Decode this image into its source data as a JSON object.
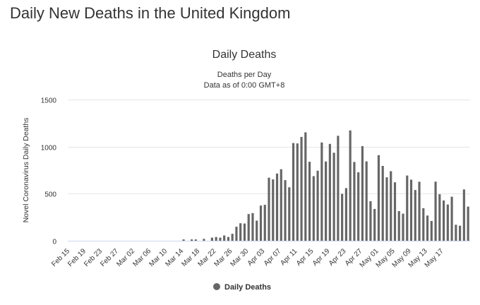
{
  "page": {
    "title": "Daily New Deaths in the United Kingdom"
  },
  "chart_data": {
    "type": "bar",
    "title": "Daily Deaths",
    "subtitle_line1": "Deaths per Day",
    "subtitle_line2": "Data as of 0:00 GMT+8",
    "ylabel": "Novel Coronavirus Daily Deaths",
    "xlabel": "",
    "ylim": [
      0,
      1500
    ],
    "yticks": [
      0,
      500,
      1000,
      1500
    ],
    "grid": true,
    "legend": "bottom-center",
    "series": [
      {
        "name": "Daily Deaths",
        "color": "#666666",
        "start_date": "2020-02-15",
        "values": [
          0,
          0,
          0,
          0,
          0,
          0,
          0,
          0,
          0,
          0,
          0,
          0,
          0,
          0,
          0,
          0,
          0,
          0,
          0,
          0,
          0,
          0,
          0,
          0,
          0,
          0,
          0,
          0,
          14,
          0,
          14,
          14,
          0,
          20,
          0,
          33,
          40,
          33,
          56,
          40,
          74,
          149,
          186,
          183,
          284,
          294,
          214,
          374,
          382,
          670,
          652,
          714,
          760,
          644,
          568,
          1038,
          1034,
          1103,
          1152,
          839,
          686,
          744,
          1044,
          842,
          1029,
          935,
          1115,
          498,
          559,
          1172,
          837,
          727,
          1005,
          843,
          420,
          338,
          909,
          795,
          674,
          739,
          621,
          315,
          288,
          693,
          649,
          539,
          627,
          346,
          268,
          210,
          628,
          494,
          428,
          385,
          468,
          170,
          160,
          545,
          363
        ]
      }
    ],
    "x_tick_labels": [
      "Feb 15",
      "Feb 19",
      "Feb 23",
      "Feb 27",
      "Mar 02",
      "Mar 06",
      "Mar 10",
      "Mar 14",
      "Mar 18",
      "Mar 22",
      "Mar 26",
      "Mar 30",
      "Apr 03",
      "Apr 07",
      "Apr 11",
      "Apr 15",
      "Apr 19",
      "Apr 23",
      "Apr 27",
      "May 01",
      "May 05",
      "May 09",
      "May 13",
      "May 17"
    ],
    "x_tick_every": 4
  }
}
